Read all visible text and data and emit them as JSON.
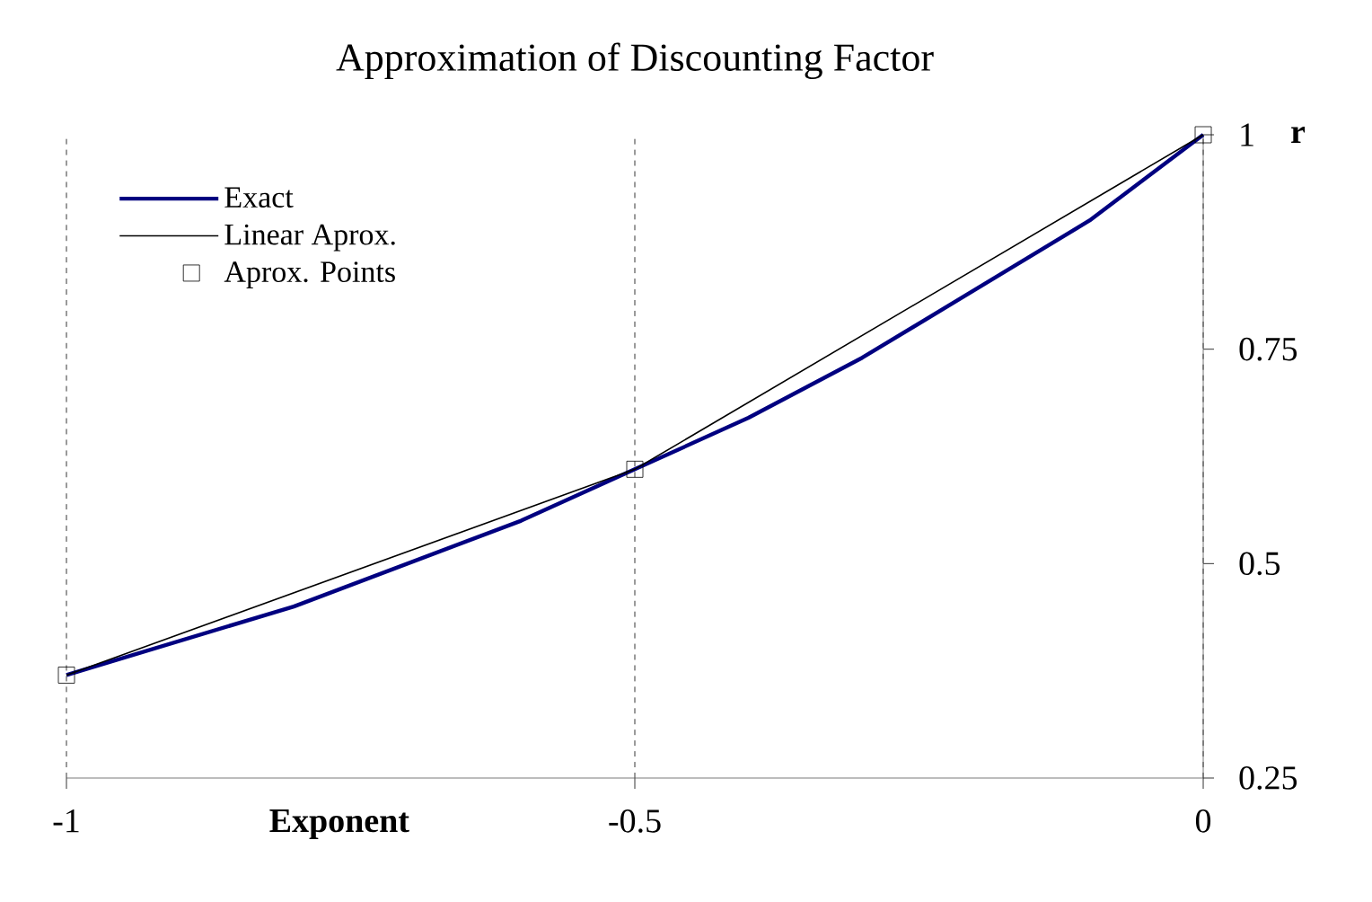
{
  "chart_data": {
    "type": "line",
    "title": "Approximation of Discounting Factor",
    "xlabel": "Exponent",
    "ylabel": "r",
    "xlim": [
      -1,
      0
    ],
    "xticks": [
      -1,
      -0.5,
      0
    ],
    "ylim": [
      0.25,
      1
    ],
    "yticks": [
      0.25,
      0.5,
      0.75,
      1
    ],
    "grid": "x",
    "legend": "top left",
    "series": [
      {
        "name": "Exact",
        "color": "#000080",
        "x": [
          -1,
          -0.9,
          -0.8,
          -0.7,
          -0.6,
          -0.5,
          -0.4,
          -0.3,
          -0.2,
          -0.1,
          0
        ],
        "values": [
          0.37,
          0.41,
          0.45,
          0.5,
          0.55,
          0.61,
          0.67,
          0.74,
          0.82,
          0.9,
          1
        ]
      },
      {
        "name": "Linear Aprox.",
        "color": "#000000",
        "x": [
          -1,
          -0.5,
          0
        ],
        "values": [
          0.37,
          0.61,
          1
        ]
      },
      {
        "name": "Aprox. Points",
        "type": "scatter",
        "marker": "square",
        "color": "#000000",
        "x": [
          -1,
          -0.5,
          0
        ],
        "values": [
          0.37,
          0.61,
          1
        ]
      }
    ]
  }
}
